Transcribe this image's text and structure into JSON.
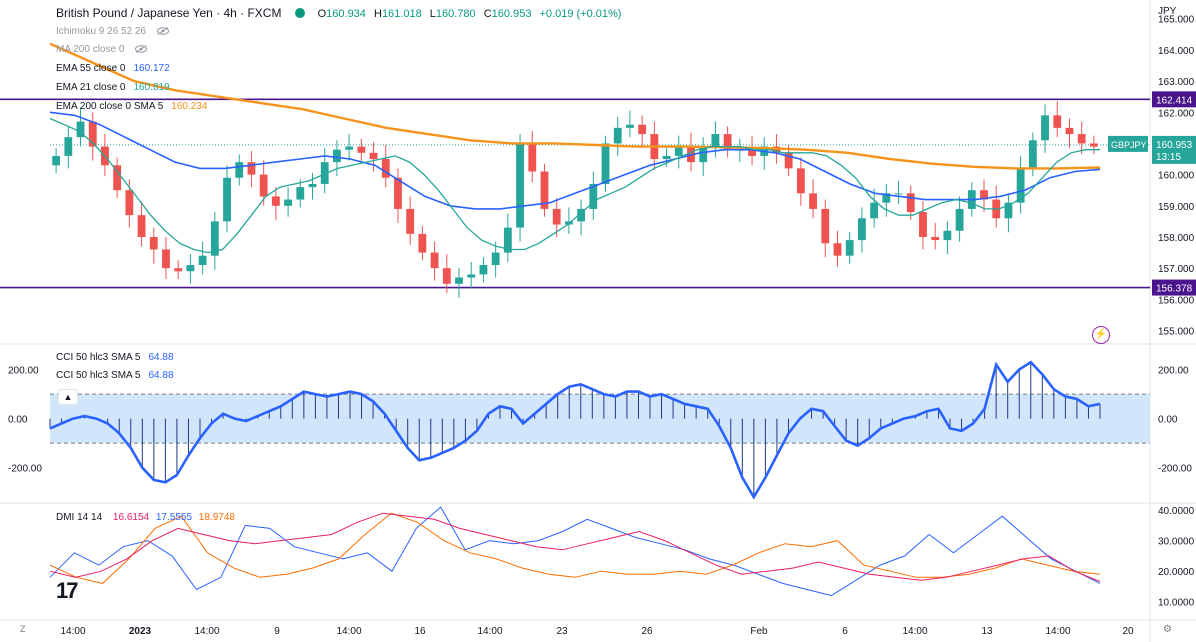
{
  "header": {
    "title": "British Pound / Japanese Yen · 4h · FXCM",
    "ohlc": [
      {
        "label": "O",
        "value": "160.934"
      },
      {
        "label": "H",
        "value": "161.018"
      },
      {
        "label": "L",
        "value": "160.780"
      },
      {
        "label": "C",
        "value": "160.953"
      }
    ],
    "change": "+0.019 (+0.01%)",
    "currency": "JPY"
  },
  "indicators": [
    {
      "name": "Ichimoku 9 26 52 26",
      "value": "",
      "color": "#9598a1",
      "hidden": true
    },
    {
      "name": "MA 200 close 0",
      "value": "",
      "color": "#9598a1",
      "hidden": true
    },
    {
      "name": "EMA 55 close 0",
      "value": "160.172",
      "color": "#2962ff",
      "hidden": false
    },
    {
      "name": "EMA 21 close 0",
      "value": "160.819",
      "color": "#26a69a",
      "hidden": false
    },
    {
      "name": "EMA 200 close 0 SMA 5",
      "value": "160.234",
      "color": "#f7931a",
      "hidden": false
    }
  ],
  "cci_legend": [
    {
      "name": "CCI 50 hlc3 SMA 5",
      "value": "64.88"
    },
    {
      "name": "CCI 50 hlc3 SMA 5",
      "value": "64.88"
    }
  ],
  "dmi_legend": {
    "name": "DMI 14 14",
    "values": [
      "16.6154",
      "17.5555",
      "18.9748"
    ],
    "colors": [
      "#e91e63",
      "#2962ff",
      "#ff6d00"
    ]
  },
  "symbol_tag": {
    "text": "GBPJPY",
    "price": "160.953",
    "countdown": "13:15",
    "color": "#26a69a"
  },
  "levels": [
    {
      "value": 162.414,
      "label": "162.414",
      "color": "#4a148c"
    },
    {
      "value": 156.378,
      "label": "156.378",
      "color": "#4a148c"
    }
  ],
  "price_axis": {
    "ticks": [
      "165.000",
      "164.000",
      "163.000",
      "162.000",
      "161.000",
      "160.000",
      "159.000",
      "158.000",
      "157.000",
      "156.000",
      "155.000"
    ],
    "min": 154.6,
    "max": 165.6
  },
  "cci_axis": {
    "ticks": [
      "200.00",
      "0.00",
      "-200.00"
    ]
  },
  "dmi_axis": {
    "ticks": [
      "40.0000",
      "30.0000",
      "20.0000",
      "10.0000"
    ]
  },
  "time_axis": {
    "labels": [
      "14:00",
      "2023",
      "14:00",
      "9",
      "14:00",
      "16",
      "14:00",
      "23",
      "26",
      "Feb",
      "6",
      "14:00",
      "13",
      "14:00",
      "20"
    ],
    "bold": [
      false,
      true,
      false,
      false,
      false,
      false,
      false,
      false,
      false,
      false,
      false,
      false,
      false,
      false,
      false
    ]
  },
  "bottom_left_label": "Z",
  "logo_text": "17",
  "chart_data": [
    {
      "type": "candlestick",
      "title": "British Pound / Japanese Yen · 4h · FXCM",
      "ylabel": "JPY",
      "ylim": [
        154.6,
        165.6
      ],
      "last": {
        "open": 160.934,
        "high": 161.018,
        "low": 160.78,
        "close": 160.953
      },
      "close_series": [
        160.6,
        161.2,
        161.7,
        160.9,
        160.3,
        159.5,
        158.7,
        158.0,
        157.6,
        157.0,
        156.9,
        157.1,
        157.4,
        158.5,
        159.9,
        160.4,
        160.0,
        159.3,
        159.0,
        159.2,
        159.6,
        159.7,
        160.4,
        160.8,
        160.9,
        160.7,
        160.5,
        159.9,
        158.9,
        158.1,
        157.5,
        157.0,
        156.5,
        156.7,
        156.8,
        157.1,
        157.5,
        158.3,
        161.0,
        160.1,
        158.9,
        158.4,
        158.5,
        158.9,
        159.7,
        161.0,
        161.5,
        161.6,
        161.3,
        160.5,
        160.6,
        160.9,
        160.4,
        160.9,
        161.3,
        160.8,
        160.8,
        160.6,
        160.9,
        160.7,
        160.2,
        159.4,
        158.9,
        157.8,
        157.4,
        157.9,
        158.6,
        159.1,
        159.4,
        159.4,
        158.8,
        158.0,
        157.9,
        158.2,
        158.9,
        159.5,
        159.2,
        158.6,
        159.1,
        160.2,
        161.1,
        161.9,
        161.5,
        161.3,
        161.0,
        160.9
      ],
      "ema21": [
        161.8,
        161.6,
        161.4,
        161.0,
        160.5,
        159.9,
        159.3,
        158.7,
        158.2,
        157.8,
        157.6,
        157.5,
        157.6,
        158.1,
        158.7,
        159.3,
        159.6,
        159.7,
        159.8,
        160.0,
        160.2,
        160.3,
        160.4,
        160.5,
        160.6,
        160.4,
        160.0,
        159.5,
        158.9,
        158.3,
        157.9,
        157.7,
        157.6,
        157.6,
        157.8,
        158.1,
        158.4,
        158.8,
        159.2,
        159.4,
        159.6,
        159.9,
        160.2,
        160.4,
        160.6,
        160.8,
        160.9,
        160.9,
        160.9,
        160.8,
        160.8,
        160.7,
        160.7,
        160.7,
        160.6,
        160.3,
        159.9,
        159.3,
        158.9,
        158.7,
        158.7,
        158.9,
        159.1,
        159.2,
        159.1,
        158.9,
        158.9,
        159.1,
        159.4,
        159.9,
        160.4,
        160.7,
        160.8,
        160.8
      ],
      "ema55": [
        162.0,
        161.9,
        161.6,
        161.2,
        160.8,
        160.4,
        160.2,
        160.2,
        160.3,
        160.4,
        160.5,
        160.6,
        160.5,
        160.3,
        159.8,
        159.3,
        159.0,
        158.9,
        158.9,
        159.0,
        159.1,
        159.4,
        159.7,
        160.0,
        160.3,
        160.5,
        160.7,
        160.8,
        160.8,
        160.7,
        160.5,
        160.1,
        159.7,
        159.4,
        159.3,
        159.2,
        159.2,
        159.2,
        159.3,
        159.5,
        159.9,
        160.1,
        160.17
      ],
      "ema200": [
        164.2,
        163.6,
        163.0,
        162.7,
        162.5,
        162.3,
        162.1,
        161.8,
        161.5,
        161.3,
        161.1,
        161.0,
        161.0,
        160.95,
        160.9,
        160.9,
        160.88,
        160.85,
        160.8,
        160.7,
        160.5,
        160.35,
        160.25,
        160.2,
        160.2,
        160.23
      ]
    },
    {
      "type": "area",
      "title": "CCI 50 hlc3 SMA 5",
      "ylim": [
        -340,
        300
      ],
      "levels": [
        100,
        -100
      ],
      "values": [
        -40,
        -20,
        0,
        10,
        0,
        -20,
        -60,
        -120,
        -200,
        -250,
        -260,
        -230,
        -150,
        -80,
        -20,
        20,
        0,
        -10,
        10,
        30,
        50,
        80,
        110,
        100,
        90,
        100,
        110,
        100,
        70,
        20,
        -50,
        -120,
        -170,
        -160,
        -140,
        -120,
        -90,
        -50,
        20,
        50,
        40,
        -20,
        20,
        60,
        100,
        130,
        140,
        120,
        100,
        90,
        110,
        110,
        90,
        100,
        80,
        60,
        50,
        40,
        -30,
        -120,
        -240,
        -320,
        -240,
        -150,
        -60,
        0,
        40,
        30,
        -30,
        -90,
        -110,
        -80,
        -40,
        -20,
        0,
        10,
        30,
        40,
        -40,
        -50,
        -20,
        40,
        220,
        150,
        200,
        230,
        180,
        120,
        90,
        80,
        50,
        60
      ],
      "last": 64.88
    },
    {
      "type": "line",
      "title": "DMI 14 14",
      "ylim": [
        4,
        42
      ],
      "series": [
        {
          "name": "+DI",
          "values": [
            18,
            26,
            22,
            28,
            30,
            25,
            14,
            18,
            35,
            34,
            28,
            26,
            24,
            26,
            20,
            34,
            41,
            27,
            30,
            29,
            30,
            33,
            37,
            34,
            31,
            29,
            27,
            24,
            22,
            19,
            16,
            14,
            12,
            17,
            22,
            25,
            32,
            26,
            32,
            38,
            31,
            24,
            20,
            16
          ],
          "last": 17.5555
        },
        {
          "name": "-DI",
          "values": [
            22,
            18,
            16,
            24,
            34,
            38,
            26,
            21,
            18,
            19,
            21,
            24,
            32,
            39,
            36,
            30,
            26,
            24,
            21,
            19,
            18,
            20,
            19,
            19,
            20,
            19,
            22,
            26,
            29,
            28,
            30,
            22,
            20,
            18,
            18,
            19,
            21,
            24,
            22,
            20,
            18.9748
          ],
          "last": 18.9748
        },
        {
          "name": "ADX",
          "values": [
            20,
            18,
            20,
            24,
            30,
            34,
            32,
            30,
            29,
            30,
            31,
            32,
            36,
            39,
            38,
            37,
            34,
            32,
            30,
            28,
            27,
            29,
            31,
            33,
            30,
            26,
            22,
            19,
            20,
            21,
            23,
            21,
            19,
            18,
            17,
            18,
            20,
            22,
            24,
            25,
            20,
            16.6154
          ],
          "last": 16.6154
        }
      ]
    }
  ]
}
